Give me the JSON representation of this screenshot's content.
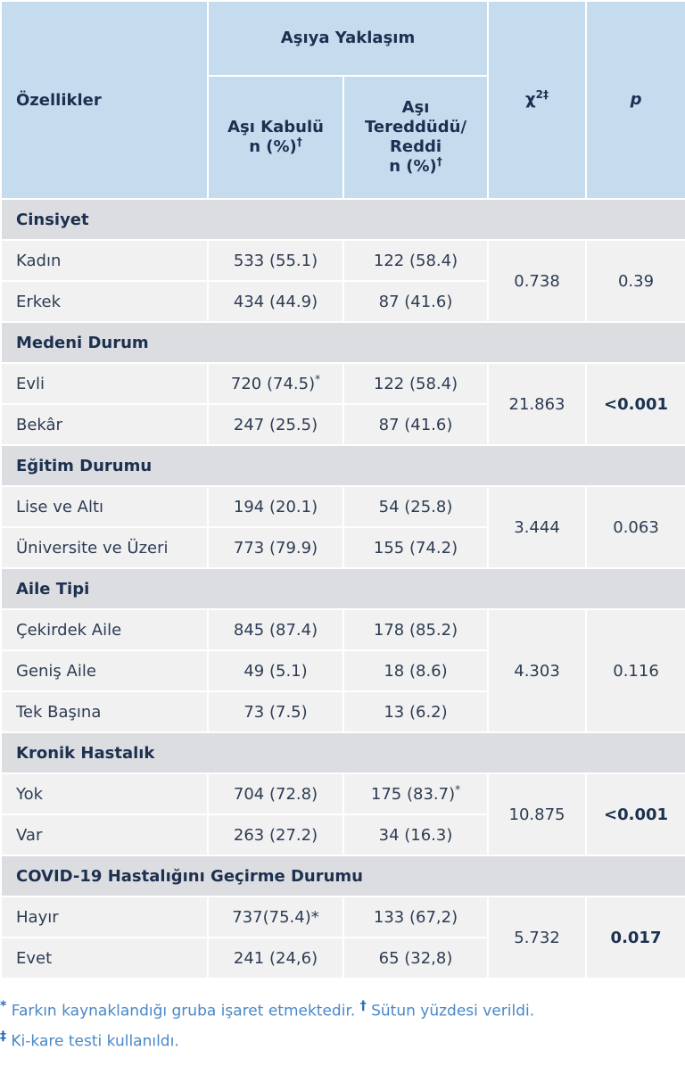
{
  "header": {
    "features": "Özellikler",
    "group": "Aşıya Yaklaşım",
    "accept_line1": "Aşı Kabulü",
    "accept_line2": "n (%)",
    "accept_sup": "†",
    "hes_line1": "Aşı",
    "hes_line2": "Tereddüdü/",
    "hes_line3": "Reddi",
    "hes_line4": "n (%)",
    "hes_sup": "†",
    "chi": "χ",
    "chi_sup": "2‡",
    "p": "p"
  },
  "groups": [
    {
      "title": "Cinsiyet",
      "rows": [
        {
          "label": "Kadın",
          "a": "533 (55.1)",
          "a_mark": "",
          "b": "122 (58.4)",
          "b_mark": ""
        },
        {
          "label": "Erkek",
          "a": "434 (44.9)",
          "a_mark": "",
          "b": "87 (41.6)",
          "b_mark": ""
        }
      ],
      "chi": "0.738",
      "p": "0.39",
      "p_bold": false
    },
    {
      "title": "Medeni Durum",
      "rows": [
        {
          "label": "Evli",
          "a": "720 (74.5)",
          "a_mark": "*",
          "b": "122 (58.4)",
          "b_mark": ""
        },
        {
          "label": "Bekâr",
          "a": "247 (25.5)",
          "a_mark": "",
          "b": "87 (41.6)",
          "b_mark": ""
        }
      ],
      "chi": "21.863",
      "p": "<0.001",
      "p_bold": true
    },
    {
      "title": "Eğitim Durumu",
      "rows": [
        {
          "label": "Lise ve Altı",
          "a": "194 (20.1)",
          "a_mark": "",
          "b": "54 (25.8)",
          "b_mark": ""
        },
        {
          "label": "Üniversite ve Üzeri",
          "a": "773 (79.9)",
          "a_mark": "",
          "b": "155 (74.2)",
          "b_mark": ""
        }
      ],
      "chi": "3.444",
      "p": "0.063",
      "p_bold": false
    },
    {
      "title": "Aile Tipi",
      "rows": [
        {
          "label": "Çekirdek Aile",
          "a": "845 (87.4)",
          "a_mark": "",
          "b": "178 (85.2)",
          "b_mark": ""
        },
        {
          "label": "Geniş Aile",
          "a": "49 (5.1)",
          "a_mark": "",
          "b": "18 (8.6)",
          "b_mark": ""
        },
        {
          "label": "Tek Başına",
          "a": "73 (7.5)",
          "a_mark": "",
          "b": "13 (6.2)",
          "b_mark": ""
        }
      ],
      "chi": "4.303",
      "p": "0.116",
      "p_bold": false
    },
    {
      "title": "Kronik Hastalık",
      "rows": [
        {
          "label": "Yok",
          "a": "704 (72.8)",
          "a_mark": "",
          "b": "175 (83.7)",
          "b_mark": "*"
        },
        {
          "label": "Var",
          "a": "263 (27.2)",
          "a_mark": "",
          "b": "34 (16.3)",
          "b_mark": ""
        }
      ],
      "chi": "10.875",
      "p": "<0.001",
      "p_bold": true
    },
    {
      "title": "COVID-19 Hastalığını Geçirme Durumu",
      "rows": [
        {
          "label": "Hayır",
          "a": "737(75.4)*",
          "a_mark": "",
          "b": "133 (67,2)",
          "b_mark": ""
        },
        {
          "label": "Evet",
          "a": "241 (24,6)",
          "a_mark": "",
          "b": "65 (32,8)",
          "b_mark": ""
        }
      ],
      "chi": "5.732",
      "p": "0.017",
      "p_bold": true
    }
  ],
  "footnotes": {
    "mark1": "*",
    "text1": "Farkın kaynaklandığı gruba işaret etmektedir.",
    "mark2": "†",
    "text2": "Sütun yüzdesi verildi.",
    "mark3": "‡",
    "text3": "Ki-kare testi kullanıldı."
  },
  "colors": {
    "header_bg": "#c5dcee",
    "group_bg": "#dcdde0",
    "row_bg": "#f1f1f2",
    "footnote_text": "#4a88c8"
  }
}
